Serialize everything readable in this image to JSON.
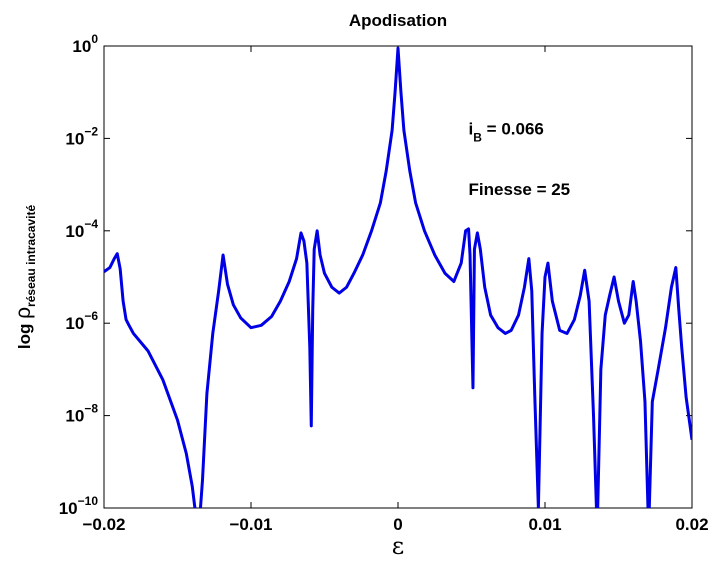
{
  "chart_data": {
    "type": "line",
    "title": "Apodisation",
    "xlabel": "ε",
    "ylabel": {
      "prefix": "log ",
      "symbol": "ρ",
      "subscript": "réseau intracavité"
    },
    "xlim": [
      -0.02,
      0.02
    ],
    "ylim": [
      1e-10,
      1
    ],
    "yscale": "log",
    "grid": false,
    "xticks": [
      {
        "value": -0.02,
        "label": "−0.02"
      },
      {
        "value": -0.01,
        "label": "−0.01"
      },
      {
        "value": 0,
        "label": "0"
      },
      {
        "value": 0.01,
        "label": "0.01"
      },
      {
        "value": 0.02,
        "label": "0.02"
      }
    ],
    "yticks": [
      {
        "value": 1e-10,
        "base": "10",
        "exp": "−10"
      },
      {
        "value": 1e-08,
        "base": "10",
        "exp": "−8"
      },
      {
        "value": 1e-06,
        "base": "10",
        "exp": "−6"
      },
      {
        "value": 0.0001,
        "base": "10",
        "exp": "−4"
      },
      {
        "value": 0.01,
        "base": "10",
        "exp": "−2"
      },
      {
        "value": 1,
        "base": "10",
        "exp": "0"
      }
    ],
    "annotations": [
      {
        "main": "i",
        "sub": "B",
        "rest": " = 0.066",
        "x": 0.0048,
        "y": 0.012
      },
      {
        "main": "Finesse = 25",
        "sub": "",
        "rest": "",
        "x": 0.0048,
        "y": 0.0006
      }
    ],
    "series": [
      {
        "color": "#0000e6",
        "x": [
          -0.02,
          -0.0196,
          -0.0193,
          -0.0191,
          -0.0189,
          -0.0187,
          -0.0185,
          -0.0183,
          -0.018,
          -0.017,
          -0.016,
          -0.015,
          -0.0144,
          -0.014,
          -0.0137,
          -0.01355,
          -0.0133,
          -0.013,
          -0.0126,
          -0.0122,
          -0.0119,
          -0.0116,
          -0.0112,
          -0.0107,
          -0.01,
          -0.0093,
          -0.0086,
          -0.008,
          -0.0074,
          -0.0069,
          -0.0066,
          -0.0064,
          -0.0062,
          -0.006,
          -0.0059,
          -0.0058,
          -0.0057,
          -0.0055,
          -0.0053,
          -0.005,
          -0.0045,
          -0.004,
          -0.0035,
          -0.003,
          -0.0024,
          -0.0018,
          -0.0012,
          -0.0008,
          -0.0004,
          -0.0002,
          0.0,
          0.0002,
          0.0004,
          0.0008,
          0.0012,
          0.0018,
          0.0025,
          0.0032,
          0.0038,
          0.0043,
          0.0046,
          0.0048,
          0.0049,
          0.0051,
          0.0052,
          0.0054,
          0.0056,
          0.0059,
          0.0063,
          0.0068,
          0.0073,
          0.0077,
          0.0082,
          0.0086,
          0.0089,
          0.0091,
          0.0093,
          0.00955,
          0.0098,
          0.01,
          0.0102,
          0.0105,
          0.011,
          0.0115,
          0.012,
          0.0124,
          0.0127,
          0.013,
          0.0133,
          0.01355,
          0.0138,
          0.0141,
          0.0144,
          0.0147,
          0.015,
          0.0154,
          0.0157,
          0.016,
          0.0162,
          0.0165,
          0.0168,
          0.01705,
          0.0173,
          0.0177,
          0.0182,
          0.0186,
          0.0189,
          0.0191,
          0.0193,
          0.0196,
          0.02
        ],
        "y": [
          1.3e-05,
          1.6e-05,
          2.5e-05,
          3.2e-05,
          1.5e-05,
          3e-06,
          1.2e-06,
          9e-07,
          6e-07,
          2.5e-07,
          6e-08,
          8e-09,
          1.5e-09,
          3e-10,
          5e-11,
          3e-11,
          4e-10,
          3e-08,
          6e-07,
          5e-06,
          3e-05,
          7e-06,
          2.5e-06,
          1.3e-06,
          8e-07,
          9e-07,
          1.4e-06,
          3e-06,
          8e-06,
          2.5e-05,
          9e-05,
          6e-05,
          2e-05,
          3e-07,
          6e-09,
          2e-06,
          4e-05,
          0.0001,
          3e-05,
          1.2e-05,
          6e-06,
          4.5e-06,
          6e-06,
          1.2e-05,
          3e-05,
          0.0001,
          0.0004,
          0.002,
          0.015,
          0.1,
          0.9,
          0.1,
          0.015,
          0.002,
          0.0004,
          0.0001,
          3e-05,
          1.2e-05,
          8e-06,
          2e-05,
          0.0001,
          0.00011,
          3e-05,
          4e-08,
          4e-05,
          9e-05,
          4e-05,
          6e-06,
          1.5e-06,
          8e-07,
          6e-07,
          7e-07,
          1.5e-06,
          6e-06,
          2.5e-05,
          5e-06,
          3e-08,
          1e-10,
          6e-07,
          1e-05,
          2e-05,
          3e-06,
          7e-07,
          6e-07,
          1.2e-06,
          4e-06,
          1.4e-05,
          3e-06,
          1e-08,
          3e-11,
          1e-07,
          1.5e-06,
          4e-06,
          1e-05,
          3e-06,
          1e-06,
          1.5e-06,
          8e-06,
          3e-06,
          4e-07,
          2e-08,
          3e-11,
          2e-08,
          1e-07,
          8e-07,
          6e-06,
          1.6e-05,
          2e-06,
          3e-07,
          2.5e-08,
          3e-09
        ]
      }
    ]
  }
}
